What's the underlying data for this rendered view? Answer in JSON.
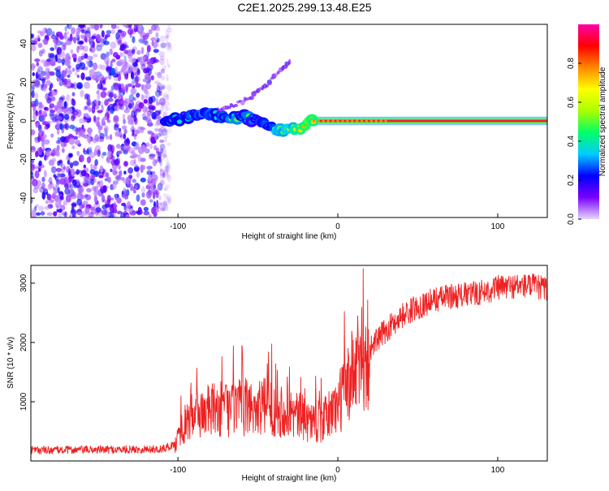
{
  "title": "C2E1.2025.299.13.48.E25",
  "chart_data": [
    {
      "type": "heatmap",
      "xlabel": "Height of straight line (km)",
      "ylabel": "Frequency (Hz)",
      "xlim": [
        -192,
        131
      ],
      "ylim": [
        -50,
        50
      ],
      "xticks": [
        -100,
        0,
        100
      ],
      "yticks": [
        -40,
        -20,
        0,
        20,
        40
      ],
      "grid": false,
      "colorbar": {
        "label": "Normalized spectral amplitude",
        "range": [
          0,
          1
        ],
        "ticks": [
          0.0,
          0.2,
          0.4,
          0.6,
          0.8
        ],
        "tick_labels": [
          "0.0",
          "0.2",
          "0.4",
          "0.6",
          "0.8"
        ],
        "colormap": [
          "#e6d6ff",
          "#7a00ff",
          "#0000ff",
          "#00ccff",
          "#00ff66",
          "#aaff00",
          "#ffff00",
          "#ff8800",
          "#ff0000",
          "#ff00aa"
        ]
      },
      "trace": {
        "height_km": [
          -108,
          -100,
          -90,
          -80,
          -70,
          -60,
          -50,
          -40,
          -35,
          -30,
          -25,
          -20,
          -15,
          -10,
          0,
          10,
          20,
          30,
          60,
          90,
          120,
          131
        ],
        "frequency_hz": [
          0,
          1,
          3,
          3,
          2,
          2,
          0,
          -4,
          -5,
          -4,
          -4,
          -2,
          0,
          0,
          0,
          0,
          0,
          0,
          0,
          0,
          0,
          0
        ],
        "amplitude": [
          0.35,
          0.4,
          0.4,
          0.4,
          0.4,
          0.4,
          0.35,
          0.45,
          0.6,
          0.6,
          0.65,
          0.7,
          0.8,
          0.85,
          0.95,
          0.95,
          0.95,
          0.95,
          0.95,
          0.95,
          0.95,
          0.95
        ]
      },
      "secondary_trace": {
        "height_km": [
          -75,
          -65,
          -55,
          -45,
          -35,
          -30
        ],
        "frequency_hz": [
          6,
          8,
          12,
          18,
          27,
          31
        ]
      },
      "noise_region_km": [
        -192,
        -105
      ]
    },
    {
      "type": "line",
      "xlabel": "Height of straight line (km)",
      "ylabel": "SNR (10 * v/v)",
      "xlim": [
        -192,
        131
      ],
      "ylim": [
        0,
        3300
      ],
      "xticks": [
        -100,
        0,
        100
      ],
      "yticks": [
        1000,
        2000,
        3000
      ],
      "grid": false,
      "series": [
        {
          "name": "SNR",
          "color": "#ee2222",
          "envelope_km": [
            -192,
            -150,
            -110,
            -102,
            -98,
            -90,
            -80,
            -70,
            -60,
            -50,
            -40,
            -30,
            -20,
            -10,
            0,
            10,
            20,
            30,
            40,
            50,
            60,
            70,
            80,
            90,
            100,
            110,
            120,
            131
          ],
          "envelope_snr": [
            180,
            190,
            200,
            280,
            550,
            780,
            850,
            880,
            900,
            920,
            900,
            820,
            700,
            650,
            950,
            1500,
            1900,
            2200,
            2450,
            2600,
            2720,
            2780,
            2800,
            2850,
            2920,
            2950,
            2960,
            2900
          ]
        }
      ]
    }
  ]
}
